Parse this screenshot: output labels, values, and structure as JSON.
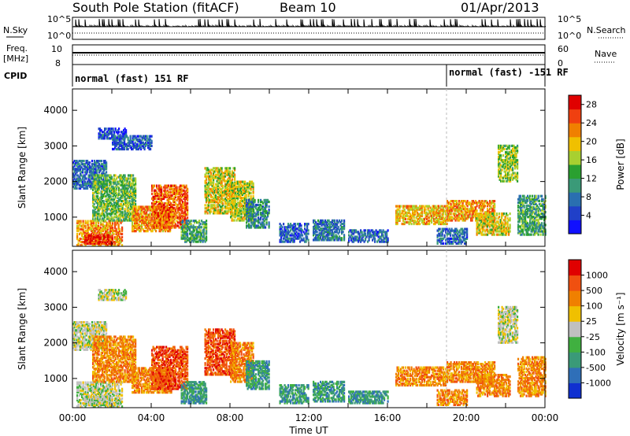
{
  "header": {
    "station": "South Pole Station (fitACF)",
    "beam": "Beam 10",
    "date": "01/Apr/2013"
  },
  "panels": {
    "nsky": {
      "label": "N.Sky",
      "left_ticks": [
        "10^5",
        "10^0"
      ],
      "right_ticks": [
        "10^5",
        "10^0"
      ],
      "right_label": "N.Search"
    },
    "freq": {
      "label_line1": "Freq.",
      "label_line2": "[MHz]",
      "left_ticks": [
        "10",
        "8"
      ],
      "right_ticks": [
        "60",
        "0"
      ],
      "right_label": "Nave"
    },
    "cpid": {
      "label": "CPID",
      "segments": [
        {
          "text": "normal (fast) 151 RF",
          "start_hour": 0.0
        },
        {
          "text": "normal (fast) -151 RF",
          "start_hour": 19.0
        }
      ]
    }
  },
  "chart_data": [
    {
      "type": "heatmap",
      "name": "power",
      "ylabel": "Slant Range [km]",
      "yticks": [
        "1000",
        "2000",
        "3000",
        "4000"
      ],
      "ylim": [
        180,
        4600
      ],
      "xlim_hours": [
        0,
        24
      ],
      "colorbar": {
        "label": "Power [dB]",
        "ticks": [
          "4",
          "8",
          "12",
          "16",
          "20",
          "24",
          "28"
        ],
        "range": [
          0,
          30
        ],
        "colors": [
          "#1010ff",
          "#2040c8",
          "#2a6fb0",
          "#3a9a78",
          "#2aa030",
          "#a8d030",
          "#f0c000",
          "#f08000",
          "#f04010",
          "#e00000"
        ]
      },
      "echo_regions": [
        {
          "t0": 0.0,
          "t1": 1.7,
          "r0": 1800,
          "r1": 2600,
          "level": 7
        },
        {
          "t0": 0.2,
          "t1": 2.5,
          "r0": 200,
          "r1": 900,
          "level": 22
        },
        {
          "t0": 0.6,
          "t1": 2.0,
          "r0": 250,
          "r1": 500,
          "level": 28
        },
        {
          "t0": 1.0,
          "t1": 3.2,
          "r0": 900,
          "r1": 2200,
          "level": 14
        },
        {
          "t0": 1.3,
          "t1": 2.7,
          "r0": 3200,
          "r1": 3500,
          "level": 5
        },
        {
          "t0": 2.0,
          "t1": 4.0,
          "r0": 2900,
          "r1": 3300,
          "level": 6
        },
        {
          "t0": 3.0,
          "t1": 5.0,
          "r0": 600,
          "r1": 1300,
          "level": 22
        },
        {
          "t0": 4.0,
          "t1": 5.8,
          "r0": 700,
          "r1": 1900,
          "level": 24
        },
        {
          "t0": 5.5,
          "t1": 6.8,
          "r0": 300,
          "r1": 900,
          "level": 12
        },
        {
          "t0": 6.7,
          "t1": 8.2,
          "r0": 1100,
          "r1": 2400,
          "level": 18
        },
        {
          "t0": 8.0,
          "t1": 9.2,
          "r0": 900,
          "r1": 2000,
          "level": 17
        },
        {
          "t0": 8.8,
          "t1": 10.0,
          "r0": 700,
          "r1": 1500,
          "level": 10
        },
        {
          "t0": 10.5,
          "t1": 12.0,
          "r0": 300,
          "r1": 800,
          "level": 6
        },
        {
          "t0": 12.2,
          "t1": 13.8,
          "r0": 350,
          "r1": 900,
          "level": 8
        },
        {
          "t0": 14.0,
          "t1": 16.0,
          "r0": 300,
          "r1": 650,
          "level": 7
        },
        {
          "t0": 16.4,
          "t1": 19.0,
          "r0": 800,
          "r1": 1300,
          "level": 20
        },
        {
          "t0": 19.0,
          "t1": 21.4,
          "r0": 900,
          "r1": 1450,
          "level": 22
        },
        {
          "t0": 18.5,
          "t1": 20.0,
          "r0": 250,
          "r1": 700,
          "level": 7
        },
        {
          "t0": 20.5,
          "t1": 22.2,
          "r0": 500,
          "r1": 1100,
          "level": 18
        },
        {
          "t0": 21.6,
          "t1": 22.6,
          "r0": 2000,
          "r1": 3000,
          "level": 16
        },
        {
          "t0": 22.6,
          "t1": 24.0,
          "r0": 500,
          "r1": 1600,
          "level": 12
        }
      ]
    },
    {
      "type": "heatmap",
      "name": "velocity",
      "ylabel": "Slant Range [km]",
      "yticks": [
        "1000",
        "2000",
        "3000",
        "4000"
      ],
      "ylim": [
        180,
        4600
      ],
      "xlabel": "Time UT",
      "xticks": [
        "00:00",
        "04:00",
        "08:00",
        "12:00",
        "16:00",
        "20:00",
        "00:00"
      ],
      "xlim_hours": [
        0,
        24
      ],
      "colorbar": {
        "label": "Velocity [m s⁻¹]",
        "ticks": [
          "1000",
          "500",
          "100",
          "25",
          "-25",
          "-100",
          "-500",
          "-1000"
        ],
        "colors": [
          "#1030d0",
          "#2f6fb8",
          "#3a9a78",
          "#40b040",
          "#c0c0c0",
          "#f0c000",
          "#f08000",
          "#f05010",
          "#e00000"
        ]
      },
      "echo_regions": [
        {
          "t0": 0.0,
          "t1": 1.7,
          "r0": 1800,
          "r1": 2600,
          "level": 4
        },
        {
          "t0": 0.2,
          "t1": 2.5,
          "r0": 200,
          "r1": 900,
          "level": 4
        },
        {
          "t0": 0.6,
          "t1": 2.0,
          "r0": 250,
          "r1": 500,
          "level": 4
        },
        {
          "t0": 1.0,
          "t1": 3.2,
          "r0": 900,
          "r1": 2200,
          "level": 6
        },
        {
          "t0": 1.3,
          "t1": 2.7,
          "r0": 3200,
          "r1": 3500,
          "level": 4
        },
        {
          "t0": 3.0,
          "t1": 5.0,
          "r0": 600,
          "r1": 1300,
          "level": 6
        },
        {
          "t0": 4.0,
          "t1": 5.8,
          "r0": 700,
          "r1": 1900,
          "level": 7
        },
        {
          "t0": 5.5,
          "t1": 6.8,
          "r0": 300,
          "r1": 900,
          "level": 2
        },
        {
          "t0": 6.7,
          "t1": 8.2,
          "r0": 1100,
          "r1": 2400,
          "level": 7
        },
        {
          "t0": 8.0,
          "t1": 9.2,
          "r0": 900,
          "r1": 2000,
          "level": 6
        },
        {
          "t0": 8.8,
          "t1": 10.0,
          "r0": 700,
          "r1": 1500,
          "level": 2
        },
        {
          "t0": 10.5,
          "t1": 12.0,
          "r0": 300,
          "r1": 800,
          "level": 2
        },
        {
          "t0": 12.2,
          "t1": 13.8,
          "r0": 350,
          "r1": 900,
          "level": 2
        },
        {
          "t0": 14.0,
          "t1": 16.0,
          "r0": 300,
          "r1": 650,
          "level": 2
        },
        {
          "t0": 16.4,
          "t1": 19.0,
          "r0": 800,
          "r1": 1300,
          "level": 6
        },
        {
          "t0": 19.0,
          "t1": 21.4,
          "r0": 900,
          "r1": 1450,
          "level": 6
        },
        {
          "t0": 18.5,
          "t1": 20.0,
          "r0": 250,
          "r1": 700,
          "level": 6
        },
        {
          "t0": 20.5,
          "t1": 22.2,
          "r0": 500,
          "r1": 1100,
          "level": 6
        },
        {
          "t0": 21.6,
          "t1": 22.6,
          "r0": 2000,
          "r1": 3000,
          "level": 4
        },
        {
          "t0": 22.6,
          "t1": 24.0,
          "r0": 500,
          "r1": 1600,
          "level": 6
        }
      ]
    }
  ]
}
